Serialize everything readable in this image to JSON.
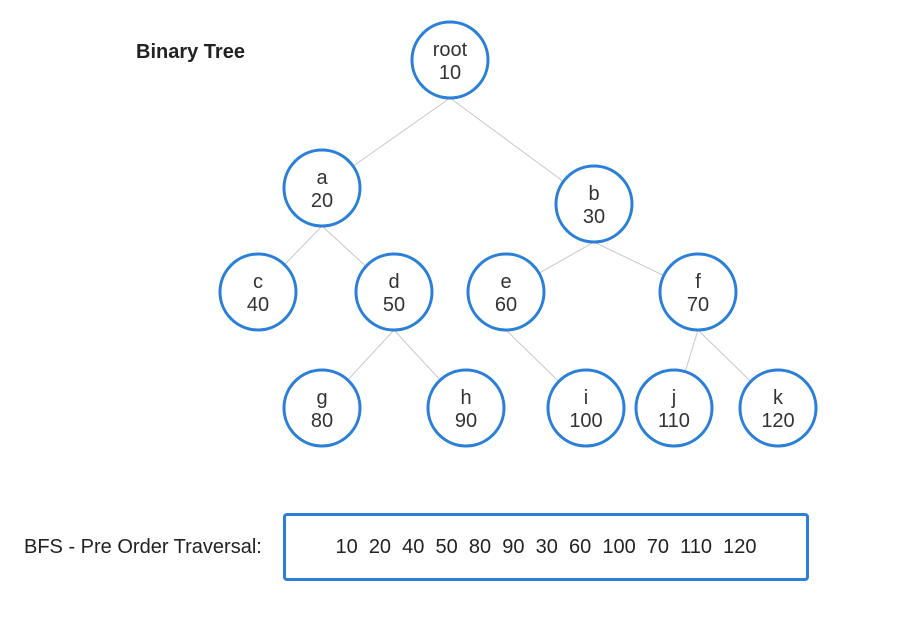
{
  "title": "Binary Tree",
  "colors": {
    "node_border": "#2b7fd8",
    "edge": "#c8c8c8",
    "text": "#222222"
  },
  "nodes": [
    {
      "id": "root",
      "name": "root",
      "value": "10"
    },
    {
      "id": "a",
      "name": "a",
      "value": "20"
    },
    {
      "id": "b",
      "name": "b",
      "value": "30"
    },
    {
      "id": "c",
      "name": "c",
      "value": "40"
    },
    {
      "id": "d",
      "name": "d",
      "value": "50"
    },
    {
      "id": "e",
      "name": "e",
      "value": "60"
    },
    {
      "id": "f",
      "name": "f",
      "value": "70"
    },
    {
      "id": "g",
      "name": "g",
      "value": "80"
    },
    {
      "id": "h",
      "name": "h",
      "value": "90"
    },
    {
      "id": "i",
      "name": "i",
      "value": "100"
    },
    {
      "id": "j",
      "name": "j",
      "value": "110"
    },
    {
      "id": "k",
      "name": "k",
      "value": "120"
    }
  ],
  "edges": [
    [
      "root",
      "a"
    ],
    [
      "root",
      "b"
    ],
    [
      "a",
      "c"
    ],
    [
      "a",
      "d"
    ],
    [
      "b",
      "e"
    ],
    [
      "b",
      "f"
    ],
    [
      "d",
      "g"
    ],
    [
      "d",
      "h"
    ],
    [
      "e",
      "i"
    ],
    [
      "f",
      "j"
    ],
    [
      "f",
      "k"
    ]
  ],
  "traversal": {
    "label": "BFS - Pre Order Traversal:",
    "values": "10  20  40  50  80  90  30  60  100  70  110  120"
  }
}
